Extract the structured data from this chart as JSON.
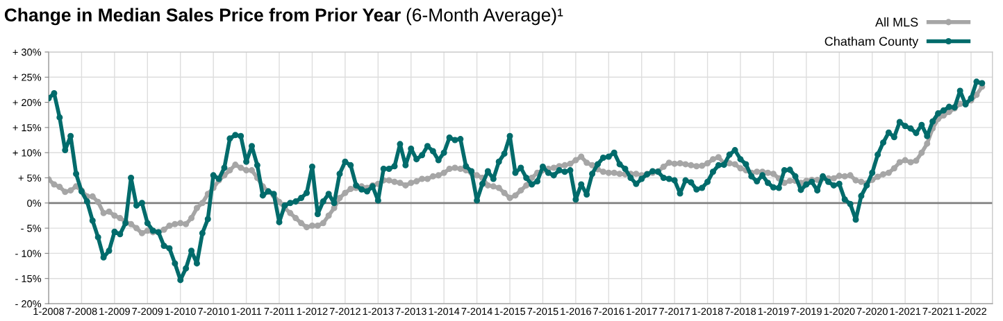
{
  "chart_data": {
    "type": "line",
    "title": "Change in Median Sales Price from Prior Year",
    "subtitle": "(6-Month Average)¹",
    "categories": [
      "1-2008",
      null,
      null,
      null,
      null,
      null,
      "7-2008",
      null,
      null,
      null,
      null,
      null,
      "1-2009",
      null,
      null,
      null,
      null,
      null,
      "7-2009",
      null,
      null,
      null,
      null,
      null,
      "1-2010",
      null,
      null,
      null,
      null,
      null,
      "7-2010",
      null,
      null,
      null,
      null,
      null,
      "1-2011",
      null,
      null,
      null,
      null,
      null,
      "7-2011",
      null,
      null,
      null,
      null,
      null,
      "1-2012",
      null,
      null,
      null,
      null,
      null,
      "7-2012",
      null,
      null,
      null,
      null,
      null,
      "1-2013",
      null,
      null,
      null,
      null,
      null,
      "7-2013",
      null,
      null,
      null,
      null,
      null,
      "1-2014",
      null,
      null,
      null,
      null,
      null,
      "7-2014",
      null,
      null,
      null,
      null,
      null,
      "1-2015",
      null,
      null,
      null,
      null,
      null,
      "7-2015",
      null,
      null,
      null,
      null,
      null,
      "1-2016",
      null,
      null,
      null,
      null,
      null,
      "7-2016",
      null,
      null,
      null,
      null,
      null,
      "1-2017",
      null,
      null,
      null,
      null,
      null,
      "7-2017",
      null,
      null,
      null,
      null,
      null,
      "1-2018",
      null,
      null,
      null,
      null,
      null,
      "7-2018",
      null,
      null,
      null,
      null,
      null,
      "1-2019",
      null,
      null,
      null,
      null,
      null,
      "7-2019",
      null,
      null,
      null,
      null,
      null,
      "1-2020",
      null,
      null,
      null,
      null,
      null,
      "7-2020",
      null,
      null,
      null,
      null,
      null,
      "1-2021",
      null,
      null,
      null,
      null,
      null,
      "7-2021",
      null,
      null,
      null,
      null,
      null,
      "1-2022",
      null,
      null
    ],
    "series": [
      {
        "name": "All MLS",
        "color": "#a6a6a6",
        "values": [
          4.7,
          3.7,
          3.2,
          2.2,
          2.5,
          3.3,
          2.5,
          1.3,
          1.3,
          0.2,
          -2.0,
          -1.7,
          -2.5,
          -3.0,
          -3.7,
          -4.2,
          -5.0,
          -6.0,
          -5.5,
          -5.8,
          -5.8,
          -5.3,
          -4.5,
          -4.2,
          -4.0,
          -4.2,
          -3.0,
          -1.0,
          0.0,
          1.8,
          3.0,
          4.5,
          5.5,
          6.5,
          7.6,
          7.0,
          6.5,
          6.5,
          5.0,
          3.3,
          2.3,
          1.5,
          0.2,
          -1.0,
          -2.0,
          -3.0,
          -4.0,
          -4.8,
          -4.5,
          -4.5,
          -4.0,
          -2.5,
          -1.0,
          1.0,
          2.0,
          2.8,
          3.0,
          3.3,
          3.0,
          3.5,
          3.8,
          4.5,
          4.5,
          4.2,
          4.0,
          3.5,
          4.0,
          4.3,
          4.8,
          4.8,
          5.3,
          5.5,
          6.0,
          6.8,
          7.0,
          6.8,
          6.5,
          6.0,
          5.5,
          5.0,
          3.5,
          3.3,
          3.0,
          2.0,
          1.0,
          1.5,
          2.5,
          3.5,
          5.0,
          6.0,
          6.5,
          6.8,
          7.0,
          7.3,
          7.5,
          7.8,
          8.5,
          9.2,
          8.0,
          7.5,
          6.7,
          6.2,
          6.0,
          6.0,
          5.8,
          5.7,
          5.8,
          5.8,
          5.5,
          5.8,
          6.0,
          6.3,
          7.2,
          8.0,
          7.8,
          7.9,
          7.7,
          7.5,
          7.3,
          7.4,
          7.9,
          8.7,
          9.1,
          7.9,
          7.9,
          7.7,
          6.9,
          6.5,
          6.0,
          6.2,
          6.2,
          6.0,
          5.8,
          4.9,
          4.0,
          4.4,
          4.4,
          4.0,
          4.4,
          4.6,
          4.6,
          4.9,
          4.9,
          4.9,
          5.4,
          5.3,
          5.5,
          4.5,
          4.2,
          3.9,
          4.6,
          5.2,
          5.7,
          6.0,
          6.9,
          8.1,
          8.5,
          8.1,
          8.4,
          10.0,
          11.8,
          14.8,
          16.7,
          17.4,
          18.1,
          18.8,
          19.7,
          19.9,
          20.4,
          21.5,
          23.1
        ]
      },
      {
        "name": "Chatham County",
        "color": "#006b6b",
        "values": [
          20.8,
          21.8,
          17.0,
          10.5,
          13.3,
          5.8,
          2.3,
          0.3,
          -3.5,
          -6.8,
          -10.8,
          -9.5,
          -5.7,
          -6.2,
          -4.0,
          5.0,
          -0.5,
          0.0,
          -4.0,
          -5.5,
          -5.8,
          -8.5,
          -9.0,
          -12.0,
          -15.3,
          -13.0,
          -9.5,
          -12.0,
          -6.0,
          -3.2,
          5.5,
          4.8,
          7.0,
          12.8,
          13.5,
          13.3,
          8.2,
          11.3,
          7.5,
          1.5,
          2.3,
          1.8,
          -3.8,
          -0.5,
          0.0,
          0.3,
          1.0,
          2.0,
          7.2,
          -2.2,
          0.3,
          1.8,
          0.0,
          5.8,
          8.2,
          7.5,
          3.5,
          2.7,
          2.3,
          3.3,
          0.5,
          6.8,
          6.8,
          7.3,
          11.7,
          7.5,
          10.8,
          8.7,
          9.5,
          11.3,
          10.3,
          8.5,
          10.0,
          13.0,
          12.5,
          12.7,
          7.3,
          6.3,
          0.5,
          3.8,
          6.3,
          4.8,
          8.2,
          9.8,
          13.3,
          6.0,
          7.0,
          5.0,
          3.7,
          4.3,
          7.2,
          6.0,
          5.5,
          6.5,
          6.2,
          6.5,
          0.7,
          3.7,
          1.7,
          5.8,
          7.7,
          9.0,
          9.2,
          10.0,
          7.7,
          6.8,
          5.0,
          3.8,
          4.8,
          5.7,
          6.3,
          6.2,
          5.0,
          4.8,
          4.5,
          1.9,
          4.5,
          4.1,
          2.7,
          3.0,
          4.2,
          6.2,
          7.5,
          7.6,
          9.6,
          10.5,
          8.7,
          7.7,
          5.3,
          4.3,
          5.5,
          4.0,
          3.1,
          3.0,
          6.5,
          6.6,
          5.3,
          2.6,
          3.7,
          4.2,
          2.5,
          5.3,
          4.2,
          3.5,
          3.8,
          0.7,
          -0.2,
          -3.3,
          1.4,
          3.5,
          6.0,
          9.6,
          12.0,
          14.0,
          13.1,
          16.1,
          15.3,
          14.8,
          13.9,
          15.5,
          13.3,
          16.2,
          17.8,
          18.4,
          19.1,
          19.0,
          22.3,
          19.6,
          20.8,
          24.1,
          23.8
        ]
      }
    ],
    "ylim": [
      -20,
      30
    ],
    "yticks": [
      {
        "value": -20,
        "label": "- 20%"
      },
      {
        "value": -15,
        "label": "- 15%"
      },
      {
        "value": -10,
        "label": "- 10%"
      },
      {
        "value": -5,
        "label": "- 5%"
      },
      {
        "value": 0,
        "label": "0%"
      },
      {
        "value": 5,
        "label": "+ 5%"
      },
      {
        "value": 10,
        "label": "+ 10%"
      },
      {
        "value": 15,
        "label": "+ 15%"
      },
      {
        "value": 20,
        "label": "+ 20%"
      },
      {
        "value": 25,
        "label": "+ 25%"
      },
      {
        "value": 30,
        "label": "+ 30%"
      }
    ],
    "ref_lines": [
      {
        "axis": "y",
        "value": 0,
        "color": "#808080"
      }
    ],
    "grid": true,
    "legend": "top right",
    "marker": "circle",
    "line_style": "solid"
  }
}
